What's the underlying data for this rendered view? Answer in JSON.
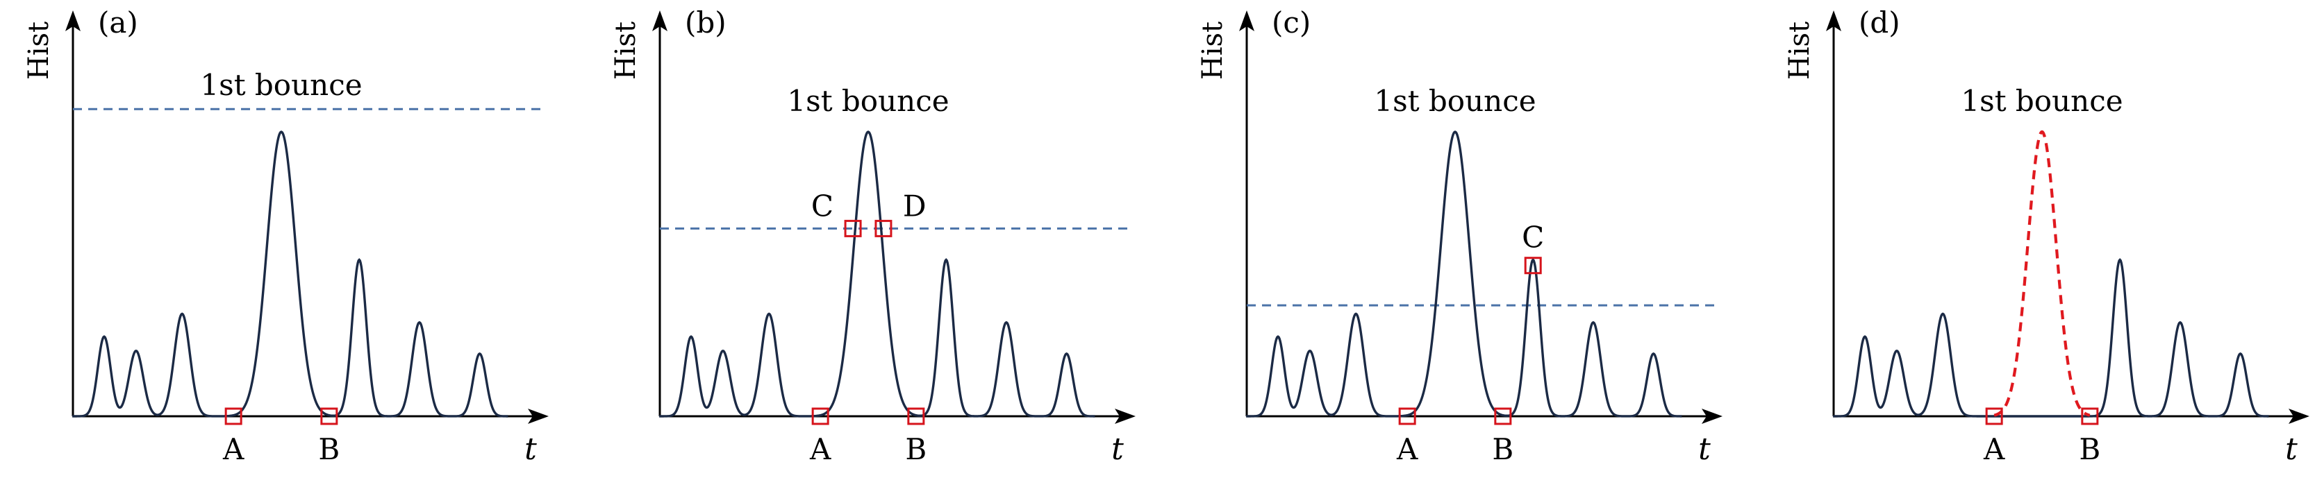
{
  "figure": {
    "y_axis_label": "Hist",
    "x_axis_label": "t",
    "title": "1st bounce",
    "panels": [
      {
        "label": "(a)",
        "threshold": 1.08,
        "peaks": [
          {
            "t": -5.0,
            "h": 0.28,
            "w": 0.18
          },
          {
            "t": -4.1,
            "h": 0.23,
            "w": 0.2
          },
          {
            "t": -2.8,
            "h": 0.36,
            "w": 0.22
          },
          {
            "t": 0.0,
            "h": 1.0,
            "w": 0.4
          },
          {
            "t": 2.2,
            "h": 0.55,
            "w": 0.2
          },
          {
            "t": 3.9,
            "h": 0.33,
            "w": 0.21
          },
          {
            "t": 5.6,
            "h": 0.22,
            "w": 0.18
          }
        ],
        "dashed_peak": false,
        "markers": [
          {
            "name": "A",
            "t": -1.35,
            "h": 0.0,
            "label_pos": "below"
          },
          {
            "name": "B",
            "t": 1.35,
            "h": 0.0,
            "label_pos": "below"
          }
        ]
      },
      {
        "label": "(b)",
        "threshold": 0.66,
        "peaks": [
          {
            "t": -5.0,
            "h": 0.28,
            "w": 0.18
          },
          {
            "t": -4.1,
            "h": 0.23,
            "w": 0.2
          },
          {
            "t": -2.8,
            "h": 0.36,
            "w": 0.22
          },
          {
            "t": 0.0,
            "h": 1.0,
            "w": 0.4
          },
          {
            "t": 2.2,
            "h": 0.55,
            "w": 0.2
          },
          {
            "t": 3.9,
            "h": 0.33,
            "w": 0.21
          },
          {
            "t": 5.6,
            "h": 0.22,
            "w": 0.18
          }
        ],
        "dashed_peak": false,
        "markers": [
          {
            "name": "C",
            "t": -0.43,
            "h": 0.66,
            "label_pos": "upper-left"
          },
          {
            "name": "D",
            "t": 0.43,
            "h": 0.66,
            "label_pos": "upper-right"
          },
          {
            "name": "A",
            "t": -1.35,
            "h": 0.0,
            "label_pos": "below"
          },
          {
            "name": "B",
            "t": 1.35,
            "h": 0.0,
            "label_pos": "below"
          }
        ]
      },
      {
        "label": "(c)",
        "threshold": 0.39,
        "peaks": [
          {
            "t": -5.0,
            "h": 0.28,
            "w": 0.18
          },
          {
            "t": -4.1,
            "h": 0.23,
            "w": 0.2
          },
          {
            "t": -2.8,
            "h": 0.36,
            "w": 0.22
          },
          {
            "t": 0.0,
            "h": 1.0,
            "w": 0.4
          },
          {
            "t": 2.2,
            "h": 0.55,
            "w": 0.2
          },
          {
            "t": 3.9,
            "h": 0.33,
            "w": 0.21
          },
          {
            "t": 5.6,
            "h": 0.22,
            "w": 0.18
          }
        ],
        "dashed_peak": false,
        "markers": [
          {
            "name": "C",
            "t": 2.2,
            "h": 0.53,
            "label_pos": "above"
          },
          {
            "name": "A",
            "t": -1.35,
            "h": 0.0,
            "label_pos": "below"
          },
          {
            "name": "B",
            "t": 1.35,
            "h": 0.0,
            "label_pos": "below"
          }
        ]
      },
      {
        "label": "(d)",
        "threshold": null,
        "peaks": [
          {
            "t": -5.0,
            "h": 0.28,
            "w": 0.18
          },
          {
            "t": -4.1,
            "h": 0.23,
            "w": 0.2
          },
          {
            "t": -2.8,
            "h": 0.36,
            "w": 0.22
          },
          {
            "t": 0.0,
            "h": 1.0,
            "w": 0.4
          },
          {
            "t": 2.2,
            "h": 0.55,
            "w": 0.2
          },
          {
            "t": 3.9,
            "h": 0.33,
            "w": 0.21
          },
          {
            "t": 5.6,
            "h": 0.22,
            "w": 0.18
          }
        ],
        "dashed_peak": true,
        "markers": [
          {
            "name": "A",
            "t": -1.35,
            "h": 0.0,
            "label_pos": "below"
          },
          {
            "name": "B",
            "t": 1.35,
            "h": 0.0,
            "label_pos": "below"
          }
        ]
      }
    ],
    "colors": {
      "curve": "#1b2a45",
      "threshold": "#4a72a8",
      "marker": "#d6141c",
      "dashed_peak": "#e0191f"
    }
  }
}
